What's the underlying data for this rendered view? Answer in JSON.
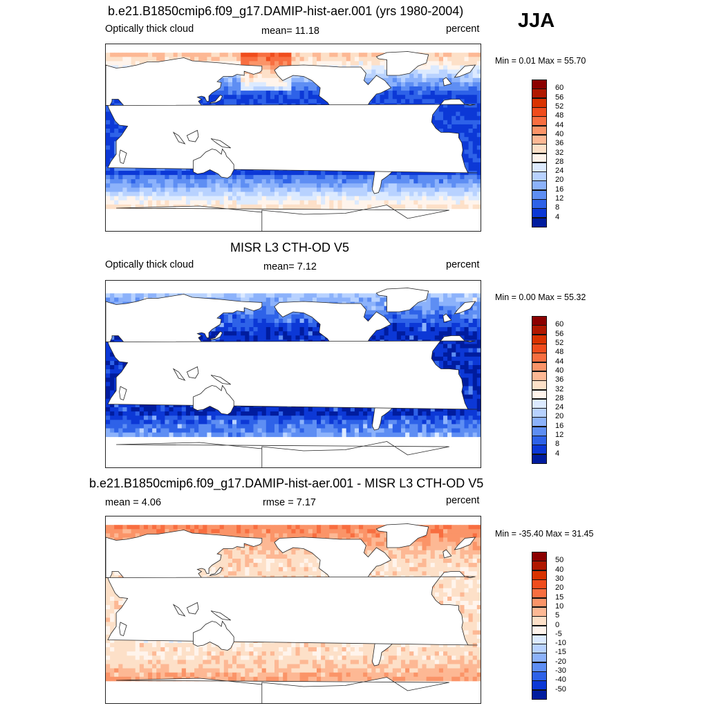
{
  "season": "JJA",
  "panels": [
    {
      "id": "model",
      "title": "b.e21.B1850cmip6.f09_g17.DAMIP-hist-aer.001 (yrs 1980-2004)",
      "left_label": "Optically thick cloud",
      "center_label": "mean=  11.18",
      "units": "percent",
      "minmax": "Min =   0.01 Max =  55.70",
      "field": "model",
      "colorbar": "seq"
    },
    {
      "id": "obs",
      "title": "MISR L3 CTH-OD V5",
      "left_label": "Optically thick cloud",
      "center_label": "mean=   7.12",
      "units": "percent",
      "minmax": "Min =   0.00 Max =  55.32",
      "field": "obs",
      "colorbar": "seq"
    },
    {
      "id": "diff",
      "title": "b.e21.B1850cmip6.f09_g17.DAMIP-hist-aer.001 - MISR L3 CTH-OD V5",
      "left_label": "mean =   4.06",
      "center_label": "rmse =   7.17",
      "units": "percent",
      "minmax": "Min = -35.40 Max =  31.45",
      "field": "diff",
      "colorbar": "div"
    }
  ],
  "colorbars": {
    "seq": {
      "labels": [
        "60",
        "56",
        "52",
        "48",
        "44",
        "40",
        "36",
        "32",
        "28",
        "24",
        "20",
        "16",
        "12",
        "8",
        "4"
      ],
      "colors": [
        "#8b0000",
        "#b01800",
        "#d93300",
        "#f04c1c",
        "#f86e40",
        "#fb9468",
        "#fdb894",
        "#fde0c8",
        "#fff4ec",
        "#dceaff",
        "#b8d2ff",
        "#8cb2fb",
        "#5e8ef3",
        "#2e62e8",
        "#0c38d6",
        "#001c9e"
      ]
    },
    "div": {
      "labels": [
        "50",
        "40",
        "30",
        "20",
        "15",
        "10",
        "5",
        "0",
        "-5",
        "-10",
        "-15",
        "-20",
        "-30",
        "-40",
        "-50"
      ],
      "colors": [
        "#8b0000",
        "#b01800",
        "#d93300",
        "#f04c1c",
        "#f86e40",
        "#fb9468",
        "#fdb894",
        "#fde0c8",
        "#fff4ec",
        "#dceaff",
        "#b8d2ff",
        "#8cb2fb",
        "#5e8ef3",
        "#2e62e8",
        "#0c38d6",
        "#001c9e"
      ]
    }
  }
}
